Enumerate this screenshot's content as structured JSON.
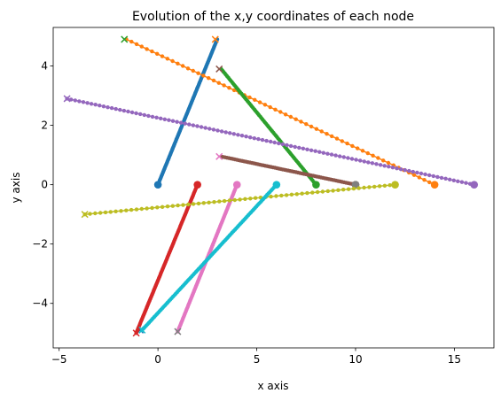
{
  "chart_data": {
    "type": "line",
    "title": "Evolution of the x,y coordinates of each node",
    "xlabel": "x axis",
    "ylabel": "y axis",
    "xlim": [
      -5.3,
      17.0
    ],
    "ylim": [
      -5.5,
      5.3
    ],
    "xticks": [
      -5,
      0,
      5,
      10,
      15
    ],
    "yticks": [
      -4,
      -2,
      0,
      2,
      4
    ],
    "xtick_labels": [
      "−5",
      "0",
      "5",
      "10",
      "15"
    ],
    "ytick_labels": [
      "−4",
      "−2",
      "0",
      "2",
      "4"
    ],
    "grid": false,
    "legend": "none",
    "start_marker": "x",
    "end_marker": "circle",
    "series": [
      {
        "color": "#1f77b4",
        "start": [
          -0.9,
          -4.9
        ],
        "end": [
          0.0,
          0.0
        ],
        "path_end": [
          3.0,
          4.9
        ],
        "points": 100
      },
      {
        "color": "#ff7f0e",
        "start": [
          2.9,
          4.9
        ],
        "end": [
          14.0,
          0.0
        ],
        "path_end": [
          -1.6,
          4.9
        ],
        "points": 60
      },
      {
        "color": "#2ca02c",
        "start": [
          -1.7,
          4.9
        ],
        "end": [
          8.0,
          0.0
        ],
        "path_end": [
          3.2,
          3.9
        ],
        "points": 80
      },
      {
        "color": "#d62728",
        "start": [
          -1.1,
          -5.0
        ],
        "end": [
          2.0,
          0.0
        ],
        "path_end": [
          -1.1,
          -5.0
        ],
        "points": 100
      },
      {
        "color": "#9467bd",
        "start": [
          -4.6,
          2.9
        ],
        "end": [
          16.0,
          0.0
        ],
        "path_end": [
          -4.6,
          2.9
        ],
        "points": 100
      },
      {
        "color": "#8c564b",
        "start": [
          3.1,
          3.9
        ],
        "end": [
          10.0,
          0.0
        ],
        "path_end": [
          3.2,
          0.95
        ],
        "points": 70
      },
      {
        "color": "#e377c2",
        "start": [
          3.1,
          0.95
        ],
        "end": [
          4.0,
          0.0
        ],
        "path_end": [
          1.0,
          -4.95
        ],
        "points": 100
      },
      {
        "color": "#7f7f7f",
        "start": [
          1.0,
          -4.95
        ],
        "end": [
          10.0,
          0.0
        ],
        "path_end": [
          10.0,
          0.0
        ],
        "points": 1
      },
      {
        "color": "#bcbd22",
        "start": [
          -3.7,
          -1.0
        ],
        "end": [
          12.0,
          0.0
        ],
        "path_end": [
          -3.7,
          -1.0
        ],
        "points": 60
      },
      {
        "color": "#17becf",
        "start": [
          -0.8,
          -4.9
        ],
        "end": [
          6.0,
          0.0
        ],
        "path_end": [
          -0.8,
          -4.9
        ],
        "points": 100
      }
    ]
  }
}
